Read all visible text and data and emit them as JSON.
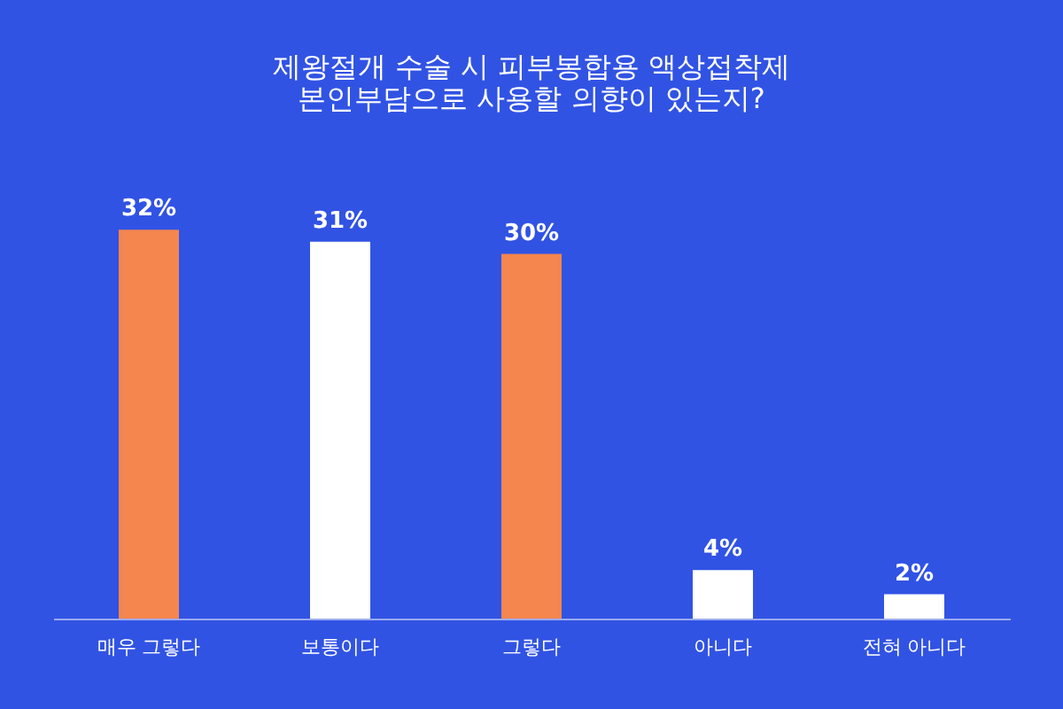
{
  "chart_data": {
    "type": "bar",
    "title": [
      "제왕절개 수술 시 피부봉합용 액상접착제",
      "본인부담으로 사용할 의향이 있는지?"
    ],
    "categories": [
      "매우 그렇다",
      "보통이다",
      "그렇다",
      "아니다",
      "전혀 아니다"
    ],
    "values": [
      32,
      31,
      30,
      4,
      2
    ],
    "colors": [
      "#f4864e",
      "#ffffff",
      "#f4864e",
      "#ffffff",
      "#ffffff"
    ],
    "value_labels": [
      "32%",
      "31%",
      "30%",
      "4%",
      "2%"
    ],
    "grid": false
  }
}
